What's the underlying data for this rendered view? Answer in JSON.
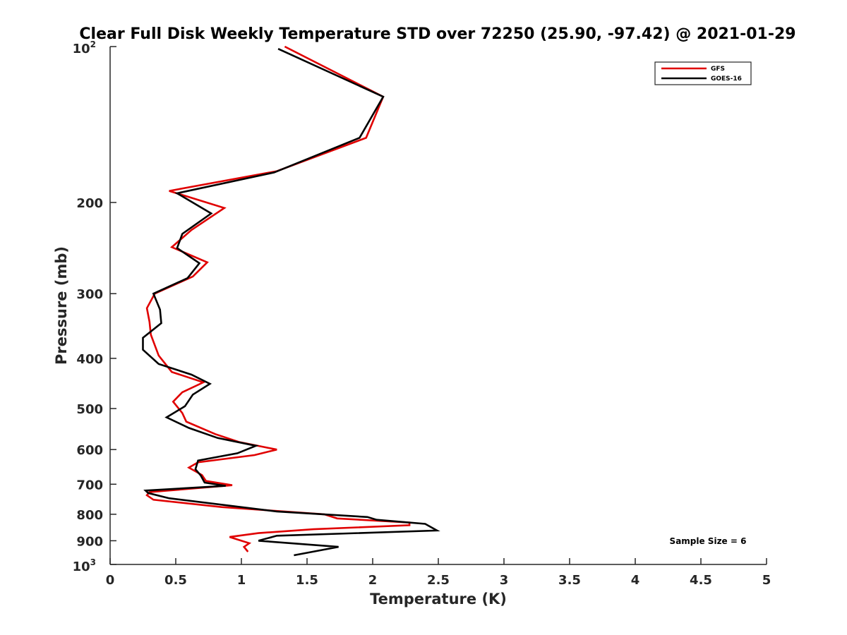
{
  "chart_data": {
    "type": "line",
    "title": "Clear Full Disk Weekly Temperature STD over 72250 (25.90, -97.42) @ 2021-01-29",
    "xlabel": "Temperature (K)",
    "ylabel": "Pressure (mb)",
    "xlim": [
      0,
      5
    ],
    "ylim": [
      1000,
      100
    ],
    "yscale": "log",
    "y_reversed": true,
    "x_ticks": [
      0,
      0.5,
      1,
      1.5,
      2,
      2.5,
      3,
      3.5,
      4,
      4.5,
      5
    ],
    "x_tick_labels": [
      "0",
      "0.5",
      "1",
      "1.5",
      "2",
      "2.5",
      "3",
      "3.5",
      "4",
      "4.5",
      "5"
    ],
    "y_ticks": [
      {
        "value": 100,
        "base": "10",
        "exp": "2"
      },
      {
        "value": 200,
        "label": "200"
      },
      {
        "value": 300,
        "label": "300"
      },
      {
        "value": 400,
        "label": "400"
      },
      {
        "value": 500,
        "label": "500"
      },
      {
        "value": 600,
        "label": "600"
      },
      {
        "value": 700,
        "label": "700"
      },
      {
        "value": 800,
        "label": "800"
      },
      {
        "value": 900,
        "label": "900"
      },
      {
        "value": 1000,
        "base": "10",
        "exp": "3"
      }
    ],
    "grid": false,
    "legend_position": "top-right",
    "annotation": "Sample Size = 6",
    "series": [
      {
        "name": "GFS",
        "color": "#e00000",
        "points": [
          [
            1.33,
            100
          ],
          [
            2.08,
            125
          ],
          [
            1.95,
            150
          ],
          [
            1.27,
            174
          ],
          [
            0.45,
            190
          ],
          [
            0.87,
            205
          ],
          [
            0.62,
            226
          ],
          [
            0.47,
            244
          ],
          [
            0.74,
            261
          ],
          [
            0.63,
            278
          ],
          [
            0.34,
            300
          ],
          [
            0.28,
            320
          ],
          [
            0.3,
            340
          ],
          [
            0.31,
            360
          ],
          [
            0.37,
            395
          ],
          [
            0.47,
            425
          ],
          [
            0.71,
            445
          ],
          [
            0.55,
            465
          ],
          [
            0.48,
            485
          ],
          [
            0.55,
            510
          ],
          [
            0.58,
            530
          ],
          [
            0.8,
            560
          ],
          [
            0.98,
            580
          ],
          [
            1.27,
            600
          ],
          [
            1.1,
            615
          ],
          [
            0.67,
            635
          ],
          [
            0.6,
            650
          ],
          [
            0.7,
            672
          ],
          [
            0.73,
            690
          ],
          [
            0.93,
            703
          ],
          [
            0.3,
            725
          ],
          [
            0.28,
            735
          ],
          [
            0.33,
            750
          ],
          [
            0.85,
            775
          ],
          [
            1.63,
            800
          ],
          [
            1.73,
            815
          ],
          [
            2.28,
            830
          ],
          [
            2.28,
            840
          ],
          [
            1.55,
            855
          ],
          [
            1.13,
            870
          ],
          [
            0.91,
            885
          ],
          [
            1.06,
            910
          ],
          [
            1.02,
            925
          ],
          [
            1.05,
            945
          ]
        ]
      },
      {
        "name": "GOES-16",
        "color": "#000000",
        "points": [
          [
            1.28,
            101
          ],
          [
            2.08,
            125
          ],
          [
            1.9,
            150
          ],
          [
            1.25,
            175
          ],
          [
            0.51,
            192
          ],
          [
            0.77,
            210
          ],
          [
            0.55,
            230
          ],
          [
            0.51,
            245
          ],
          [
            0.68,
            262
          ],
          [
            0.59,
            280
          ],
          [
            0.33,
            300
          ],
          [
            0.38,
            322
          ],
          [
            0.39,
            342
          ],
          [
            0.25,
            365
          ],
          [
            0.25,
            385
          ],
          [
            0.37,
            410
          ],
          [
            0.62,
            430
          ],
          [
            0.76,
            448
          ],
          [
            0.63,
            470
          ],
          [
            0.57,
            495
          ],
          [
            0.43,
            520
          ],
          [
            0.6,
            545
          ],
          [
            0.82,
            570
          ],
          [
            1.11,
            590
          ],
          [
            0.97,
            610
          ],
          [
            0.67,
            630
          ],
          [
            0.65,
            655
          ],
          [
            0.69,
            673
          ],
          [
            0.72,
            695
          ],
          [
            0.88,
            705
          ],
          [
            0.27,
            720
          ],
          [
            0.29,
            728
          ],
          [
            0.45,
            745
          ],
          [
            1.27,
            790
          ],
          [
            1.96,
            810
          ],
          [
            2.03,
            820
          ],
          [
            2.4,
            835
          ],
          [
            2.49,
            860
          ],
          [
            1.27,
            880
          ],
          [
            1.13,
            900
          ],
          [
            1.74,
            925
          ],
          [
            1.4,
            960
          ]
        ]
      }
    ]
  }
}
